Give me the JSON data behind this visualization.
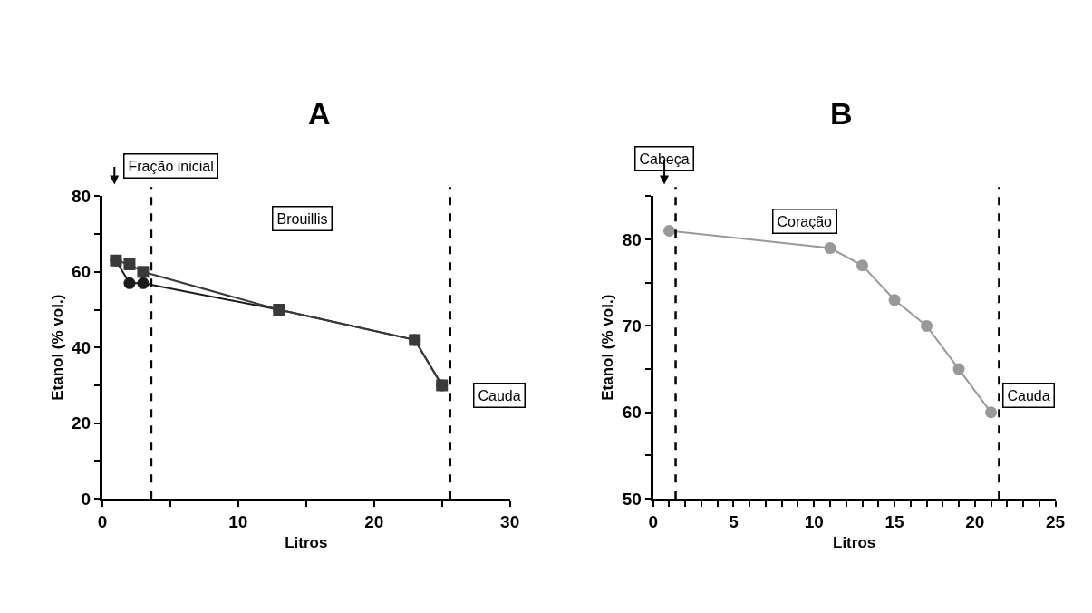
{
  "chart_data": [
    {
      "type": "line",
      "title": "A",
      "xlabel": "Litros",
      "ylabel": "Etanol (% vol.)",
      "xlim": [
        0,
        30
      ],
      "ylim": [
        0,
        80
      ],
      "xticks": [
        0,
        {
          "value": 5,
          "label": null
        },
        10,
        {
          "value": 15,
          "label": null
        },
        20,
        {
          "value": 25,
          "label": null
        },
        30
      ],
      "yticks": [
        0,
        {
          "value": 10,
          "label": null
        },
        20,
        {
          "value": 30,
          "label": null
        },
        40,
        {
          "value": 50,
          "label": null
        },
        60,
        {
          "value": 70,
          "label": null
        },
        80
      ],
      "line_style": "solid",
      "series": [
        {
          "color": "#1a1a1a",
          "marker": "circle",
          "x": [
            1,
            2,
            3,
            13,
            23,
            25
          ],
          "values": [
            63,
            57,
            57,
            50,
            42,
            30
          ]
        },
        {
          "color": "#3a3a3a",
          "marker": "square",
          "x": [
            1,
            2,
            3,
            13,
            23,
            25
          ],
          "values": [
            63,
            62,
            60,
            50,
            42,
            30
          ]
        }
      ],
      "ref_lines": [
        {
          "axis": "x",
          "value": 3.6,
          "color": "#000000",
          "line_style": "dashed"
        },
        {
          "axis": "x",
          "value": 25.6,
          "color": "#000000",
          "line_style": "dashed"
        }
      ],
      "annotations": [
        "Fração inicial",
        "Brouillis",
        "Cauda"
      ]
    },
    {
      "type": "line",
      "title": "B",
      "xlabel": "Litros",
      "ylabel": "Etanol (% vol.)",
      "xlim": [
        0,
        25
      ],
      "ylim": [
        50,
        85
      ],
      "xticks": [
        0,
        {
          "value": 1,
          "label": null
        },
        {
          "value": 2,
          "label": null
        },
        {
          "value": 3,
          "label": null
        },
        {
          "value": 4,
          "label": null
        },
        5,
        {
          "value": 6,
          "label": null
        },
        {
          "value": 7,
          "label": null
        },
        {
          "value": 8,
          "label": null
        },
        {
          "value": 9,
          "label": null
        },
        10,
        {
          "value": 11,
          "label": null
        },
        {
          "value": 12,
          "label": null
        },
        {
          "value": 13,
          "label": null
        },
        {
          "value": 14,
          "label": null
        },
        15,
        {
          "value": 16,
          "label": null
        },
        {
          "value": 17,
          "label": null
        },
        {
          "value": 18,
          "label": null
        },
        {
          "value": 19,
          "label": null
        },
        20,
        {
          "value": 21,
          "label": null
        },
        {
          "value": 22,
          "label": null
        },
        {
          "value": 23,
          "label": null
        },
        {
          "value": 24,
          "label": null
        },
        25
      ],
      "yticks": [
        50,
        {
          "value": 55,
          "label": null
        },
        60,
        {
          "value": 65,
          "label": null
        },
        70,
        {
          "value": 75,
          "label": null
        },
        80,
        {
          "value": 85,
          "label": null
        }
      ],
      "line_style": "solid",
      "series": [
        {
          "color": "#999999",
          "marker": "circle",
          "x": [
            1,
            11,
            13,
            15,
            17,
            19,
            21
          ],
          "values": [
            81,
            79,
            77,
            73,
            70,
            65,
            60
          ]
        }
      ],
      "ref_lines": [
        {
          "axis": "x",
          "value": 1.4,
          "color": "#000000",
          "line_style": "dashed"
        },
        {
          "axis": "x",
          "value": 21.5,
          "color": "#000000",
          "line_style": "dashed"
        }
      ],
      "annotations": [
        "Cabeça",
        "Coração",
        "Cauda"
      ]
    }
  ]
}
